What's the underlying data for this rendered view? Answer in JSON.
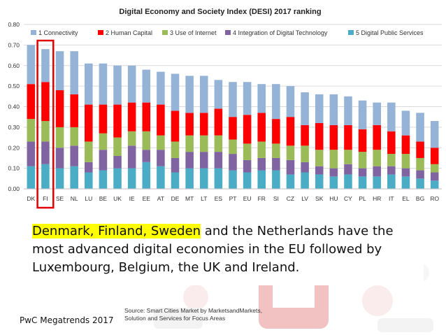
{
  "chart_data": {
    "type": "bar",
    "stacked": true,
    "title": "Digital Economy and Society Index (DESI) 2017 ranking",
    "categories": [
      "DK",
      "FI",
      "SE",
      "NL",
      "LU",
      "BE",
      "UK",
      "IE",
      "EE",
      "AT",
      "DE",
      "MT",
      "LT",
      "ES",
      "PT",
      "EU",
      "FR",
      "SI",
      "CZ",
      "LV",
      "SK",
      "HU",
      "CY",
      "PL",
      "HR",
      "IT",
      "EL",
      "BG",
      "RO"
    ],
    "highlighted_category": "FI",
    "highlight_color": "#e00000",
    "ylim": [
      0,
      0.8
    ],
    "yticks": [
      "0.00",
      "0.10",
      "0.20",
      "0.30",
      "0.40",
      "0.50",
      "0.60",
      "0.70",
      "0.80"
    ],
    "grid": true,
    "legend_position": "top",
    "series": [
      {
        "name": "5 Digital Public Services",
        "color": "#4bacc6",
        "values": [
          0.11,
          0.12,
          0.1,
          0.11,
          0.08,
          0.09,
          0.1,
          0.1,
          0.13,
          0.11,
          0.08,
          0.1,
          0.1,
          0.1,
          0.09,
          0.08,
          0.09,
          0.09,
          0.07,
          0.08,
          0.07,
          0.06,
          0.07,
          0.06,
          0.06,
          0.07,
          0.06,
          0.05,
          0.04
        ]
      },
      {
        "name": "4 Integration of Digital Technology",
        "color": "#8064a2",
        "values": [
          0.12,
          0.11,
          0.1,
          0.1,
          0.05,
          0.1,
          0.06,
          0.11,
          0.06,
          0.08,
          0.07,
          0.08,
          0.08,
          0.08,
          0.08,
          0.06,
          0.06,
          0.06,
          0.07,
          0.05,
          0.04,
          0.04,
          0.05,
          0.04,
          0.05,
          0.04,
          0.04,
          0.04,
          0.04
        ]
      },
      {
        "name": "3 Use of Internet",
        "color": "#9bbb59",
        "values": [
          0.11,
          0.1,
          0.1,
          0.09,
          0.1,
          0.08,
          0.09,
          0.07,
          0.09,
          0.07,
          0.08,
          0.08,
          0.08,
          0.08,
          0.07,
          0.08,
          0.08,
          0.07,
          0.07,
          0.08,
          0.08,
          0.09,
          0.07,
          0.08,
          0.08,
          0.06,
          0.07,
          0.06,
          0.04
        ]
      },
      {
        "name": "2 Human Capital",
        "color": "#ff0000",
        "values": [
          0.17,
          0.19,
          0.18,
          0.16,
          0.18,
          0.14,
          0.16,
          0.14,
          0.14,
          0.15,
          0.15,
          0.11,
          0.11,
          0.13,
          0.11,
          0.14,
          0.14,
          0.12,
          0.14,
          0.1,
          0.13,
          0.12,
          0.12,
          0.11,
          0.12,
          0.11,
          0.09,
          0.08,
          0.08
        ]
      },
      {
        "name": "1 Connectivity",
        "color": "#95b3d7",
        "values": [
          0.19,
          0.16,
          0.19,
          0.21,
          0.2,
          0.2,
          0.19,
          0.18,
          0.16,
          0.16,
          0.18,
          0.18,
          0.18,
          0.14,
          0.17,
          0.16,
          0.14,
          0.17,
          0.15,
          0.16,
          0.14,
          0.15,
          0.14,
          0.14,
          0.11,
          0.14,
          0.12,
          0.14,
          0.13
        ]
      }
    ]
  },
  "legend": [
    {
      "label": "1 Connectivity",
      "color": "#95b3d7"
    },
    {
      "label": "2 Human Capital",
      "color": "#ff0000"
    },
    {
      "label": "3 Use of Internet",
      "color": "#9bbb59"
    },
    {
      "label": "4 Integration of Digital Technology",
      "color": "#8064a2"
    },
    {
      "label": "5 Digital Public Services",
      "color": "#4bacc6"
    }
  ],
  "caption": {
    "highlight": "Denmark, Finland, Sweden",
    "rest": " and the Netherlands have the most advanced digital economies in the EU followed by Luxembourg, Belgium, the UK and Ireland.",
    "highlight_color": "#ffff00"
  },
  "source": {
    "line1": "Source: Smart Cities Market by MarketsandMarkets,",
    "line2": "Solution and Services for Focus Areas"
  },
  "credit": "PwC Megatrends 2017"
}
